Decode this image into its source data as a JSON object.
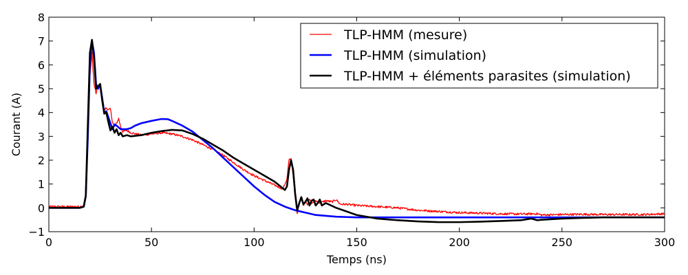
{
  "chart_data": {
    "type": "line",
    "title": "",
    "xlabel": "Temps (ns)",
    "ylabel": "Courant (A)",
    "xlim": [
      0,
      300
    ],
    "ylim": [
      -1,
      8
    ],
    "x_ticks": [
      0,
      50,
      100,
      150,
      200,
      250,
      300
    ],
    "y_ticks": [
      -1,
      0,
      1,
      2,
      3,
      4,
      5,
      6,
      7,
      8
    ],
    "grid": false,
    "legend_position": "top-right",
    "series": [
      {
        "name": "TLP-HMM (mesure)",
        "color": "#ff0000",
        "noisy": true,
        "points": [
          [
            0,
            0.05
          ],
          [
            10,
            0.05
          ],
          [
            15,
            0.05
          ],
          [
            17,
            0.1
          ],
          [
            18,
            0.5
          ],
          [
            19,
            3.0
          ],
          [
            20,
            5.5
          ],
          [
            21,
            6.5
          ],
          [
            22,
            5.2
          ],
          [
            23,
            4.8
          ],
          [
            24,
            5.1
          ],
          [
            25,
            5.0
          ],
          [
            26,
            4.5
          ],
          [
            27,
            4.1
          ],
          [
            28,
            4.2
          ],
          [
            29,
            4.1
          ],
          [
            30,
            4.15
          ],
          [
            31,
            3.6
          ],
          [
            32,
            3.4
          ],
          [
            33,
            3.55
          ],
          [
            34,
            3.75
          ],
          [
            35,
            3.4
          ],
          [
            36,
            3.2
          ],
          [
            38,
            3.25
          ],
          [
            40,
            3.15
          ],
          [
            45,
            3.05
          ],
          [
            50,
            3.1
          ],
          [
            55,
            3.15
          ],
          [
            60,
            3.1
          ],
          [
            65,
            3.0
          ],
          [
            70,
            2.85
          ],
          [
            75,
            2.65
          ],
          [
            80,
            2.45
          ],
          [
            85,
            2.2
          ],
          [
            90,
            1.9
          ],
          [
            95,
            1.6
          ],
          [
            100,
            1.35
          ],
          [
            105,
            1.15
          ],
          [
            110,
            0.95
          ],
          [
            114,
            0.8
          ],
          [
            116,
            1.2
          ],
          [
            117,
            2.0
          ],
          [
            118,
            2.05
          ],
          [
            119,
            1.4
          ],
          [
            120,
            0.4
          ],
          [
            121,
            -0.25
          ],
          [
            122,
            0.2
          ],
          [
            123,
            0.45
          ],
          [
            124,
            0.1
          ],
          [
            125,
            0.3
          ],
          [
            126,
            0.15
          ],
          [
            127,
            0.35
          ],
          [
            128,
            0.2
          ],
          [
            130,
            0.3
          ],
          [
            132,
            0.2
          ],
          [
            135,
            0.3
          ],
          [
            138,
            0.25
          ],
          [
            140,
            0.35
          ],
          [
            142,
            0.15
          ],
          [
            145,
            0.15
          ],
          [
            150,
            0.1
          ],
          [
            160,
            0.05
          ],
          [
            170,
            0.0
          ],
          [
            180,
            -0.1
          ],
          [
            190,
            -0.15
          ],
          [
            200,
            -0.2
          ],
          [
            210,
            -0.22
          ],
          [
            220,
            -0.25
          ],
          [
            230,
            -0.26
          ],
          [
            238,
            -0.25
          ],
          [
            240,
            -0.3
          ],
          [
            250,
            -0.28
          ],
          [
            260,
            -0.27
          ],
          [
            270,
            -0.28
          ],
          [
            280,
            -0.28
          ],
          [
            290,
            -0.28
          ],
          [
            300,
            -0.25
          ]
        ]
      },
      {
        "name": "TLP-HMM (simulation)",
        "color": "#0000ff",
        "noisy": false,
        "points": [
          [
            0,
            0.0
          ],
          [
            15,
            0.0
          ],
          [
            17,
            0.05
          ],
          [
            18,
            0.5
          ],
          [
            19,
            3.0
          ],
          [
            20,
            6.0
          ],
          [
            21,
            7.0
          ],
          [
            22,
            6.5
          ],
          [
            23,
            5.2
          ],
          [
            24,
            5.0
          ],
          [
            25,
            5.15
          ],
          [
            26,
            4.6
          ],
          [
            27,
            4.0
          ],
          [
            28,
            4.05
          ],
          [
            29,
            3.8
          ],
          [
            30,
            3.55
          ],
          [
            31,
            3.3
          ],
          [
            32,
            3.5
          ],
          [
            33,
            3.45
          ],
          [
            35,
            3.3
          ],
          [
            38,
            3.3
          ],
          [
            40,
            3.35
          ],
          [
            42,
            3.45
          ],
          [
            45,
            3.55
          ],
          [
            50,
            3.65
          ],
          [
            55,
            3.73
          ],
          [
            58,
            3.72
          ],
          [
            60,
            3.65
          ],
          [
            65,
            3.45
          ],
          [
            70,
            3.2
          ],
          [
            75,
            2.85
          ],
          [
            80,
            2.5
          ],
          [
            85,
            2.1
          ],
          [
            90,
            1.7
          ],
          [
            95,
            1.3
          ],
          [
            100,
            0.9
          ],
          [
            105,
            0.55
          ],
          [
            110,
            0.25
          ],
          [
            115,
            0.05
          ],
          [
            120,
            -0.1
          ],
          [
            125,
            -0.2
          ],
          [
            130,
            -0.3
          ],
          [
            140,
            -0.37
          ],
          [
            150,
            -0.4
          ],
          [
            170,
            -0.4
          ],
          [
            200,
            -0.4
          ],
          [
            250,
            -0.4
          ],
          [
            300,
            -0.4
          ]
        ]
      },
      {
        "name": "TLP-HMM + éléments parasites (simulation)",
        "color": "#000000",
        "noisy": false,
        "points": [
          [
            0,
            0.0
          ],
          [
            15,
            0.0
          ],
          [
            17,
            0.05
          ],
          [
            18,
            0.5
          ],
          [
            19,
            3.5
          ],
          [
            20,
            6.5
          ],
          [
            21,
            7.05
          ],
          [
            22,
            6.3
          ],
          [
            23,
            5.0
          ],
          [
            24,
            5.1
          ],
          [
            25,
            5.2
          ],
          [
            26,
            4.5
          ],
          [
            27,
            3.95
          ],
          [
            28,
            4.0
          ],
          [
            29,
            3.6
          ],
          [
            30,
            3.25
          ],
          [
            31,
            3.4
          ],
          [
            32,
            3.15
          ],
          [
            33,
            3.3
          ],
          [
            34,
            3.05
          ],
          [
            35,
            3.15
          ],
          [
            36,
            3.0
          ],
          [
            38,
            3.05
          ],
          [
            40,
            3.0
          ],
          [
            45,
            3.05
          ],
          [
            50,
            3.15
          ],
          [
            55,
            3.22
          ],
          [
            60,
            3.27
          ],
          [
            65,
            3.25
          ],
          [
            70,
            3.1
          ],
          [
            75,
            2.9
          ],
          [
            80,
            2.65
          ],
          [
            85,
            2.4
          ],
          [
            90,
            2.1
          ],
          [
            95,
            1.85
          ],
          [
            100,
            1.6
          ],
          [
            105,
            1.35
          ],
          [
            110,
            1.1
          ],
          [
            115,
            0.75
          ],
          [
            116,
            0.9
          ],
          [
            117,
            1.6
          ],
          [
            118,
            2.0
          ],
          [
            119,
            1.6
          ],
          [
            120,
            0.6
          ],
          [
            121,
            -0.1
          ],
          [
            122,
            0.2
          ],
          [
            123,
            0.45
          ],
          [
            124,
            0.15
          ],
          [
            125,
            0.25
          ],
          [
            126,
            0.4
          ],
          [
            127,
            0.1
          ],
          [
            128,
            0.3
          ],
          [
            129,
            0.35
          ],
          [
            130,
            0.1
          ],
          [
            131,
            0.2
          ],
          [
            132,
            0.35
          ],
          [
            133,
            0.1
          ],
          [
            135,
            0.2
          ],
          [
            140,
            0.0
          ],
          [
            145,
            -0.15
          ],
          [
            150,
            -0.3
          ],
          [
            160,
            -0.45
          ],
          [
            170,
            -0.52
          ],
          [
            180,
            -0.57
          ],
          [
            190,
            -0.6
          ],
          [
            200,
            -0.6
          ],
          [
            210,
            -0.58
          ],
          [
            220,
            -0.55
          ],
          [
            230,
            -0.52
          ],
          [
            235,
            -0.45
          ],
          [
            238,
            -0.52
          ],
          [
            240,
            -0.5
          ],
          [
            250,
            -0.45
          ],
          [
            260,
            -0.42
          ],
          [
            270,
            -0.4
          ],
          [
            280,
            -0.4
          ],
          [
            290,
            -0.4
          ],
          [
            300,
            -0.4
          ]
        ]
      }
    ]
  }
}
